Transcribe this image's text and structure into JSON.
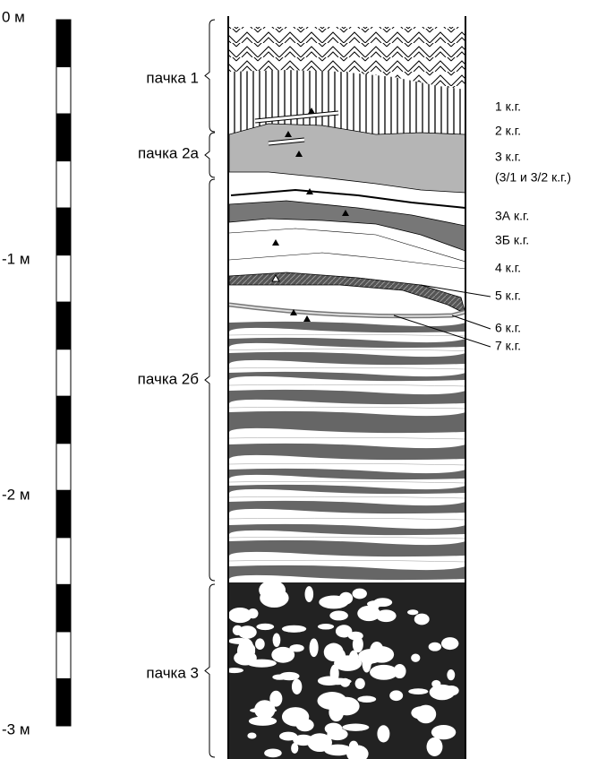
{
  "scale": {
    "labels": [
      "0 м",
      "-1 м",
      "-2 м",
      "-3 м"
    ]
  },
  "packs": [
    "пачка 1",
    "пачка 2а",
    "пачка 2б",
    "пачка 3"
  ],
  "layers": [
    "1 к.г.",
    "2 к.г.",
    "3 к.г.",
    "(3/1 и 3/2 к.г.)",
    "3А к.г.",
    "3Б к.г.",
    "4 к.г.",
    "5 к.г.",
    "6 к.г.",
    "7 к.г."
  ]
}
